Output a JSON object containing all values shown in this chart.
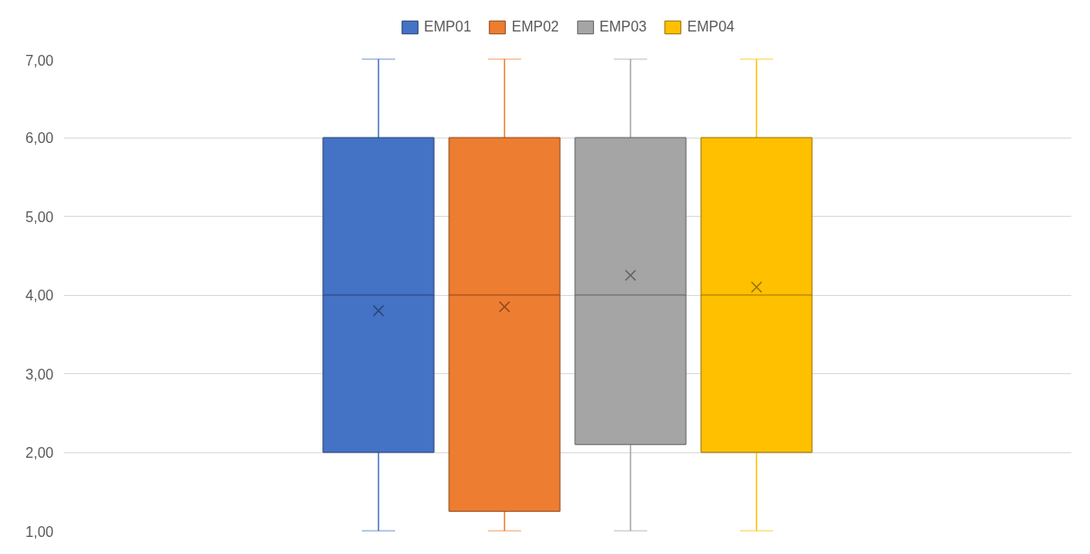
{
  "chart_data": {
    "type": "box",
    "categories": [
      null
    ],
    "series": [
      {
        "name": "EMP01",
        "color": "#4472c4",
        "boxes": [
          {
            "low": 1,
            "q1": 2,
            "median": 4,
            "q3": 6,
            "high": 7,
            "mean": 3.8
          }
        ]
      },
      {
        "name": "EMP02",
        "color": "#ed7d31",
        "boxes": [
          {
            "low": 1,
            "q1": 1.25,
            "median": 4,
            "q3": 6,
            "high": 7,
            "mean": 3.85
          }
        ]
      },
      {
        "name": "EMP03",
        "color": "#a5a5a5",
        "boxes": [
          {
            "low": 1,
            "q1": 2.1,
            "median": 4,
            "q3": 6,
            "high": 7,
            "mean": 4.25
          }
        ]
      },
      {
        "name": "EMP04",
        "color": "#ffc000",
        "boxes": [
          {
            "low": 1,
            "q1": 2,
            "median": 4,
            "q3": 6,
            "high": 7,
            "mean": 4.1
          }
        ]
      }
    ],
    "ylim": [
      1,
      7
    ],
    "yticks": [
      {
        "value": 1,
        "label": "1,00"
      },
      {
        "value": 2,
        "label": "2,00"
      },
      {
        "value": 3,
        "label": "3,00"
      },
      {
        "value": 4,
        "label": "4,00"
      },
      {
        "value": 5,
        "label": "5,00"
      },
      {
        "value": 6,
        "label": "6,00"
      },
      {
        "value": 7,
        "label": "7,00"
      }
    ],
    "grid": "y",
    "legend": "top",
    "marker": "cross"
  }
}
